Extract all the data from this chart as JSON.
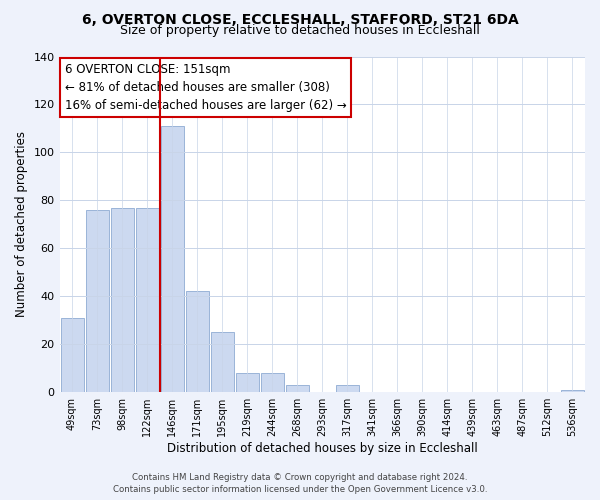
{
  "title": "6, OVERTON CLOSE, ECCLESHALL, STAFFORD, ST21 6DA",
  "subtitle": "Size of property relative to detached houses in Eccleshall",
  "xlabel": "Distribution of detached houses by size in Eccleshall",
  "ylabel": "Number of detached properties",
  "bin_labels": [
    "49sqm",
    "73sqm",
    "98sqm",
    "122sqm",
    "146sqm",
    "171sqm",
    "195sqm",
    "219sqm",
    "244sqm",
    "268sqm",
    "293sqm",
    "317sqm",
    "341sqm",
    "366sqm",
    "390sqm",
    "414sqm",
    "439sqm",
    "463sqm",
    "487sqm",
    "512sqm",
    "536sqm"
  ],
  "bar_values": [
    31,
    76,
    77,
    77,
    111,
    42,
    25,
    8,
    8,
    3,
    0,
    3,
    0,
    0,
    0,
    0,
    0,
    0,
    0,
    0,
    1
  ],
  "bar_color": "#ccd9f0",
  "bar_edge_color": "#9ab4d8",
  "vline_color": "#cc0000",
  "vline_position": 3.5,
  "ylim": [
    0,
    140
  ],
  "yticks": [
    0,
    20,
    40,
    60,
    80,
    100,
    120,
    140
  ],
  "annotation_line1": "6 OVERTON CLOSE: 151sqm",
  "annotation_line2": "← 81% of detached houses are smaller (308)",
  "annotation_line3": "16% of semi-detached houses are larger (62) →",
  "footer_line1": "Contains HM Land Registry data © Crown copyright and database right 2024.",
  "footer_line2": "Contains public sector information licensed under the Open Government Licence v3.0.",
  "background_color": "#eef2fb",
  "plot_bg_color": "#ffffff",
  "title_fontsize": 10,
  "subtitle_fontsize": 9,
  "grid_color": "#c8d4e8"
}
